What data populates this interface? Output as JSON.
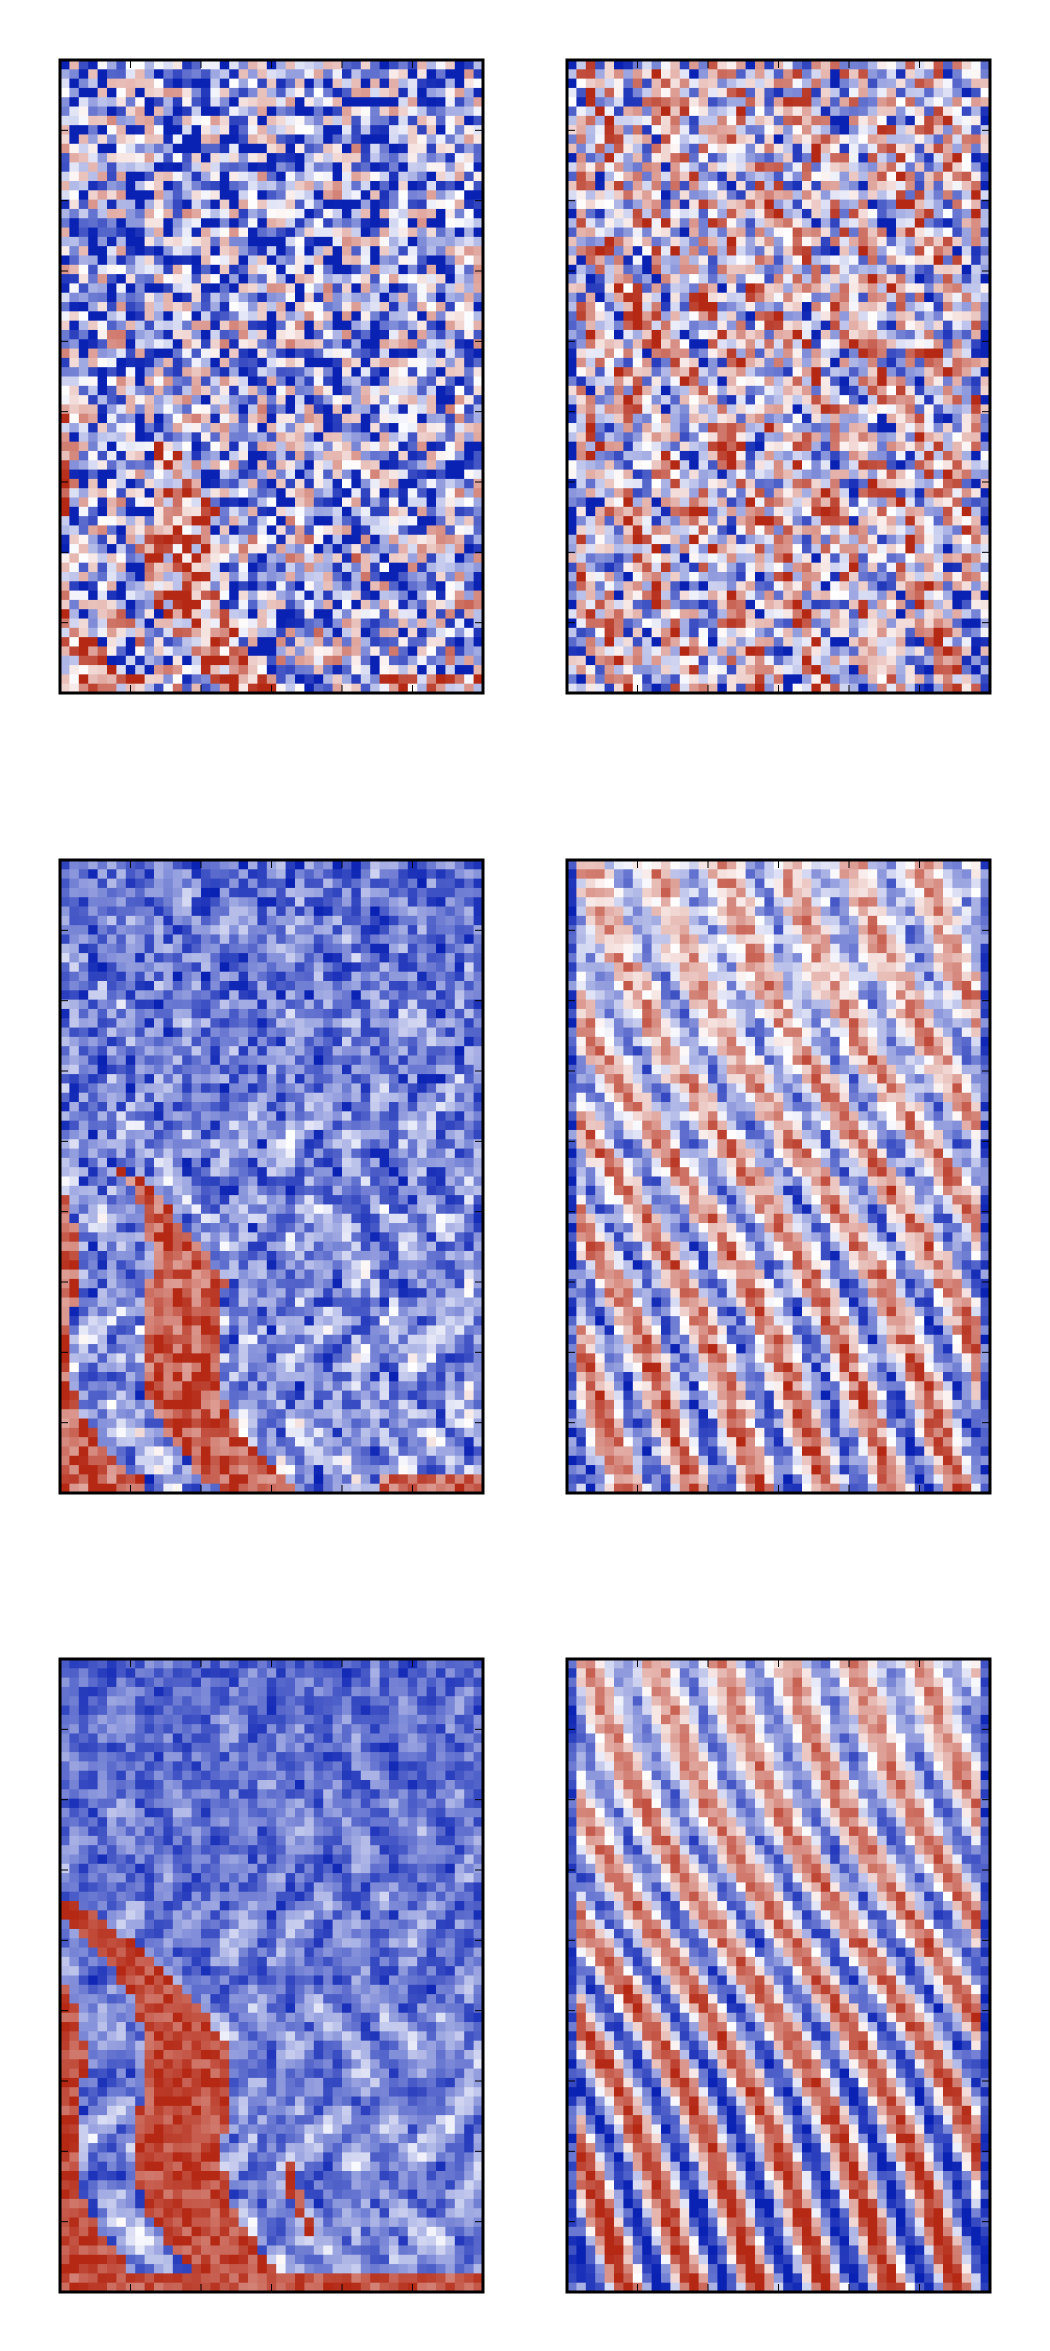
{
  "colormap": [
    "#0a22b4",
    "#ffffff",
    "#b42814"
  ]
}
